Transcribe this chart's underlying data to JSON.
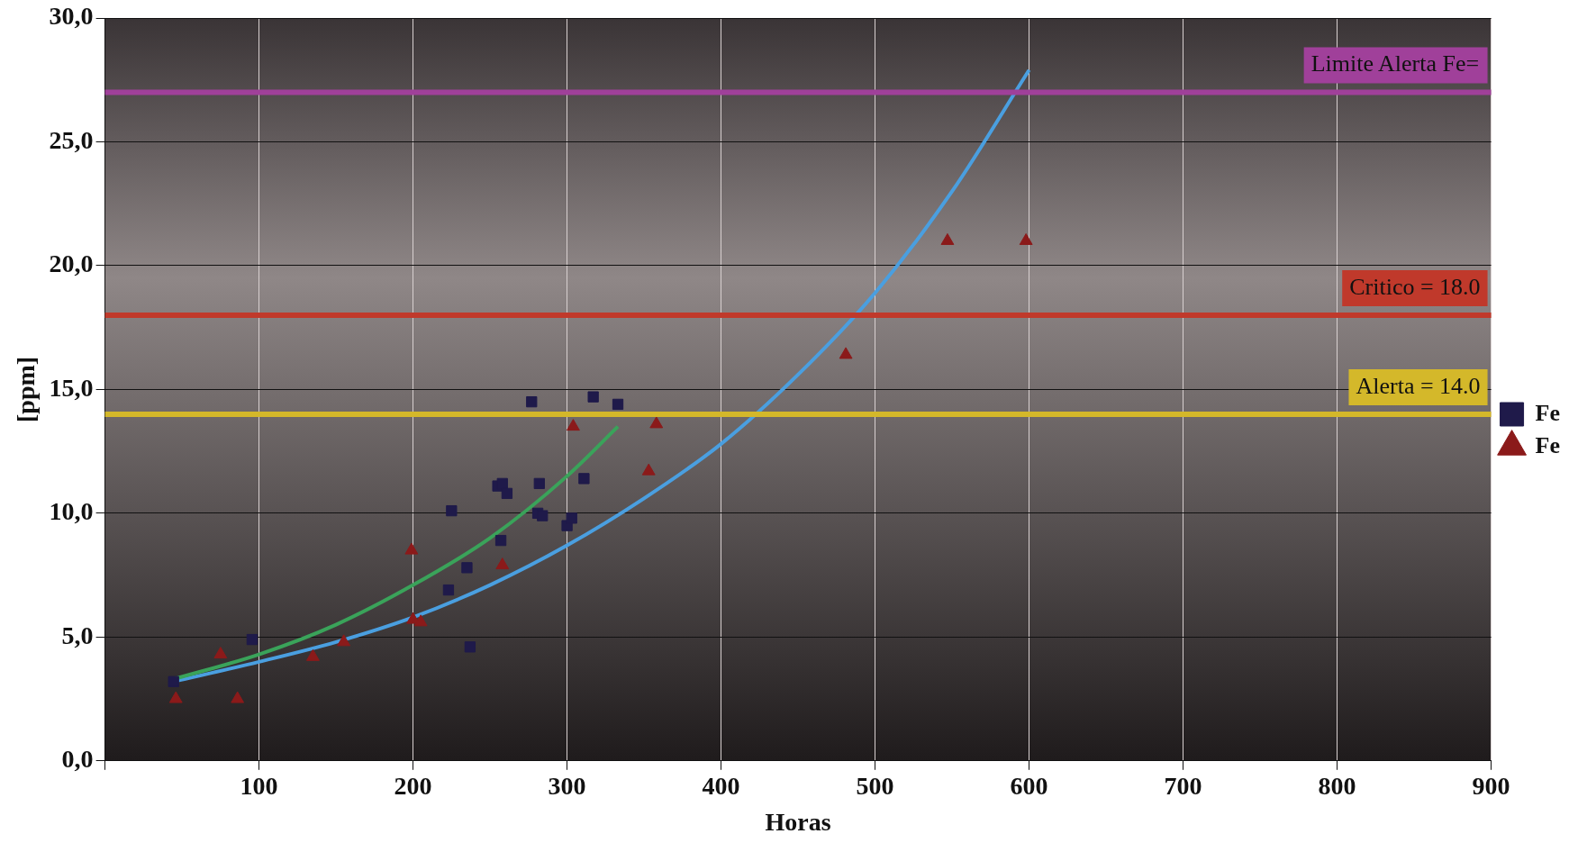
{
  "chart_data": {
    "type": "scatter",
    "xlabel": "Horas",
    "ylabel": "[ppm]",
    "xlim": [
      0,
      900
    ],
    "xticks": [
      {
        "value": 0,
        "label": null
      },
      100,
      200,
      300,
      400,
      500,
      600,
      700,
      800,
      900
    ],
    "ylim": [
      0,
      30
    ],
    "yticks": [
      {
        "value": 0,
        "label": "0,0"
      },
      {
        "value": 5,
        "label": "5,0"
      },
      {
        "value": 10,
        "label": "10,0"
      },
      {
        "value": 15,
        "label": "15,0"
      },
      {
        "value": 20,
        "label": "20,0"
      },
      {
        "value": 25,
        "label": "25,0"
      },
      {
        "value": 30,
        "label": "30,0"
      }
    ],
    "grid": true,
    "legend": "right",
    "series": [
      {
        "name": "Fe",
        "marker": "square",
        "color": "#1f1a4a",
        "x": [
          44.5,
          95.5,
          225,
          223,
          235,
          237,
          257,
          255,
          258,
          261,
          277,
          282,
          281,
          284,
          300,
          303,
          311,
          317,
          333
        ],
        "values": [
          3.2,
          4.9,
          10.1,
          6.9,
          7.8,
          4.6,
          8.9,
          11.1,
          11.2,
          10.8,
          14.5,
          11.2,
          10.0,
          9.9,
          9.5,
          9.8,
          11.4,
          14.7,
          14.4
        ]
      },
      {
        "name": "Fe",
        "marker": "triangle",
        "color": "#8b1a1a",
        "x": [
          46,
          75,
          86,
          135,
          155,
          199,
          200,
          205,
          258,
          304,
          353,
          358,
          481,
          547,
          598
        ],
        "values": [
          2.5,
          4.3,
          2.5,
          4.2,
          4.8,
          8.5,
          5.7,
          5.6,
          7.9,
          13.5,
          11.7,
          13.6,
          16.4,
          21.0,
          21.0
        ]
      },
      {
        "type": "line",
        "marker": "none",
        "color": "#3aa35a",
        "x": [
          44.5,
          100,
          150,
          200,
          250,
          300,
          333
        ],
        "values": [
          3.3,
          4.3,
          5.5,
          7.1,
          9.0,
          11.5,
          13.5
        ]
      },
      {
        "type": "line",
        "marker": "none",
        "color": "#4a9fe0",
        "x": [
          44.5,
          100,
          150,
          200,
          250,
          300,
          350,
          400,
          450,
          500,
          550,
          600
        ],
        "values": [
          3.2,
          4.0,
          4.8,
          5.8,
          7.1,
          8.7,
          10.6,
          12.8,
          15.6,
          18.9,
          23.0,
          27.9
        ]
      }
    ],
    "ref_lines": [
      {
        "axis": "y",
        "value": 27,
        "label": "Limite Alerta Fe=",
        "color": "#a0409a"
      },
      {
        "axis": "y",
        "value": 18,
        "label": "Critico = 18.0",
        "color": "#c0392b"
      },
      {
        "axis": "y",
        "value": 14,
        "label": "Alerta = 14.0",
        "color": "#d4b82a"
      }
    ]
  }
}
